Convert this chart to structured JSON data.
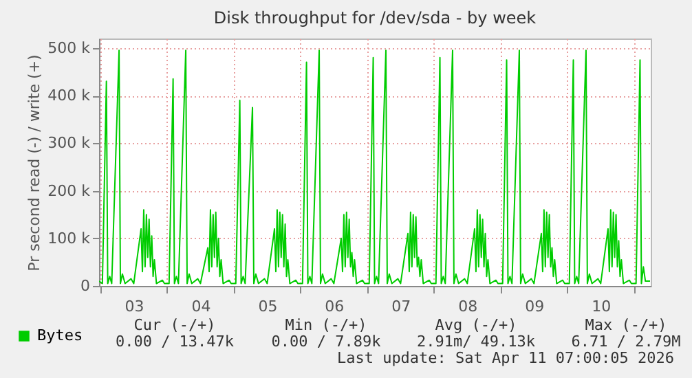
{
  "chart_data": {
    "type": "line",
    "title": "Disk throughput for /dev/sda - by week",
    "ylabel": "Pr second read (-) / write (+)",
    "xlim": [
      2.98,
      11.25
    ],
    "ylim": [
      0,
      520000
    ],
    "xticks": [
      {
        "value": 3,
        "label": null
      },
      {
        "value": 3.5,
        "label": "03"
      },
      {
        "value": 4,
        "label": null
      },
      {
        "value": 4.5,
        "label": "04"
      },
      {
        "value": 5,
        "label": null
      },
      {
        "value": 5.5,
        "label": "05"
      },
      {
        "value": 6,
        "label": null
      },
      {
        "value": 6.5,
        "label": "06"
      },
      {
        "value": 7,
        "label": null
      },
      {
        "value": 7.5,
        "label": "07"
      },
      {
        "value": 8,
        "label": null
      },
      {
        "value": 8.5,
        "label": "08"
      },
      {
        "value": 9,
        "label": null
      },
      {
        "value": 9.5,
        "label": "09"
      },
      {
        "value": 10,
        "label": null
      },
      {
        "value": 10.5,
        "label": "10"
      },
      {
        "value": 11,
        "label": null
      }
    ],
    "yticks": [
      0,
      {
        "value": 100000,
        "label": "100 k"
      },
      {
        "value": 200000,
        "label": "200 k"
      },
      {
        "value": 300000,
        "label": "300 k"
      },
      {
        "value": 400000,
        "label": "400 k"
      },
      {
        "value": 500000,
        "label": "500 k"
      }
    ],
    "grid": true,
    "legend": "bottom",
    "annotations": [
      "Cur (-/+)",
      "Min (-/+)",
      "Avg (-/+)",
      "Max (-/+)",
      "0.00 /  13.47k",
      "0.00 /   7.89k",
      "2.91m/ 49.13k",
      "6.71 /   2.79M",
      "Last update: Sat Apr 11 07:00:05 2026"
    ],
    "series": [
      {
        "name": "Bytes",
        "color": "#00cc00",
        "x": [
          2.98,
          3.03,
          3.09,
          3.11,
          3.14,
          3.17,
          3.28,
          3.3,
          3.33,
          3.37,
          3.46,
          3.5,
          3.61,
          3.63,
          3.65,
          3.67,
          3.69,
          3.71,
          3.73,
          3.75,
          3.77,
          3.79,
          3.81,
          3.84,
          3.93,
          3.96,
          4.03,
          4.09,
          4.11,
          4.14,
          4.17,
          4.28,
          4.3,
          4.33,
          4.37,
          4.46,
          4.5,
          4.61,
          4.63,
          4.65,
          4.67,
          4.69,
          4.71,
          4.73,
          4.75,
          4.77,
          4.79,
          4.81,
          4.84,
          4.93,
          4.96,
          5.03,
          5.09,
          5.11,
          5.14,
          5.17,
          5.28,
          5.3,
          5.33,
          5.37,
          5.46,
          5.5,
          5.61,
          5.63,
          5.65,
          5.67,
          5.69,
          5.71,
          5.73,
          5.75,
          5.77,
          5.79,
          5.81,
          5.84,
          5.93,
          5.96,
          6.03,
          6.09,
          6.11,
          6.14,
          6.17,
          6.28,
          6.3,
          6.33,
          6.37,
          6.46,
          6.5,
          6.61,
          6.63,
          6.65,
          6.67,
          6.69,
          6.71,
          6.73,
          6.75,
          6.77,
          6.79,
          6.81,
          6.84,
          6.93,
          6.96,
          7.03,
          7.09,
          7.11,
          7.14,
          7.17,
          7.28,
          7.3,
          7.33,
          7.37,
          7.46,
          7.5,
          7.61,
          7.63,
          7.65,
          7.67,
          7.69,
          7.71,
          7.73,
          7.75,
          7.77,
          7.79,
          7.81,
          7.84,
          7.93,
          7.96,
          8.03,
          8.09,
          8.11,
          8.14,
          8.17,
          8.28,
          8.3,
          8.33,
          8.37,
          8.46,
          8.5,
          8.61,
          8.63,
          8.65,
          8.67,
          8.69,
          8.71,
          8.73,
          8.75,
          8.77,
          8.79,
          8.81,
          8.84,
          8.93,
          8.96,
          9.03,
          9.09,
          9.11,
          9.14,
          9.17,
          9.28,
          9.3,
          9.33,
          9.37,
          9.46,
          9.5,
          9.61,
          9.63,
          9.65,
          9.67,
          9.69,
          9.71,
          9.73,
          9.75,
          9.77,
          9.79,
          9.81,
          9.84,
          9.93,
          9.96,
          10.03,
          10.09,
          10.11,
          10.14,
          10.17,
          10.28,
          10.3,
          10.33,
          10.37,
          10.46,
          10.5,
          10.61,
          10.63,
          10.65,
          10.67,
          10.69,
          10.71,
          10.73,
          10.75,
          10.77,
          10.79,
          10.81,
          10.84,
          10.93,
          10.96,
          11.03,
          11.09,
          11.11,
          11.14,
          11.17,
          11.24
        ],
        "values": [
          10000,
          5000,
          430000,
          5000,
          20000,
          5000,
          495000,
          5000,
          25000,
          5000,
          15000,
          5000,
          120000,
          30000,
          160000,
          40000,
          150000,
          60000,
          140000,
          40000,
          105000,
          20000,
          55000,
          5000,
          12000,
          5000,
          5000,
          435000,
          5000,
          20000,
          5000,
          495000,
          5000,
          25000,
          5000,
          15000,
          5000,
          80000,
          30000,
          160000,
          40000,
          150000,
          60000,
          155000,
          40000,
          100000,
          20000,
          55000,
          5000,
          12000,
          5000,
          5000,
          390000,
          5000,
          20000,
          5000,
          375000,
          5000,
          25000,
          5000,
          15000,
          5000,
          120000,
          30000,
          160000,
          40000,
          155000,
          60000,
          150000,
          40000,
          130000,
          20000,
          55000,
          5000,
          12000,
          5000,
          5000,
          470000,
          5000,
          20000,
          5000,
          495000,
          5000,
          25000,
          5000,
          15000,
          5000,
          100000,
          30000,
          150000,
          40000,
          155000,
          60000,
          140000,
          40000,
          70000,
          20000,
          55000,
          5000,
          12000,
          5000,
          5000,
          480000,
          5000,
          20000,
          5000,
          495000,
          5000,
          25000,
          5000,
          15000,
          5000,
          110000,
          30000,
          155000,
          40000,
          150000,
          60000,
          145000,
          40000,
          60000,
          20000,
          55000,
          5000,
          12000,
          5000,
          5000,
          480000,
          5000,
          20000,
          5000,
          495000,
          5000,
          25000,
          5000,
          15000,
          5000,
          120000,
          30000,
          160000,
          40000,
          150000,
          60000,
          140000,
          40000,
          110000,
          20000,
          55000,
          5000,
          12000,
          5000,
          5000,
          475000,
          5000,
          20000,
          5000,
          495000,
          5000,
          25000,
          5000,
          15000,
          5000,
          110000,
          30000,
          160000,
          40000,
          155000,
          60000,
          150000,
          40000,
          80000,
          20000,
          55000,
          5000,
          12000,
          5000,
          5000,
          475000,
          5000,
          20000,
          5000,
          495000,
          5000,
          25000,
          5000,
          15000,
          5000,
          120000,
          30000,
          160000,
          40000,
          155000,
          60000,
          150000,
          40000,
          95000,
          20000,
          55000,
          5000,
          12000,
          5000,
          5000,
          475000,
          5000,
          40000,
          10000,
          10000
        ]
      }
    ]
  }
}
